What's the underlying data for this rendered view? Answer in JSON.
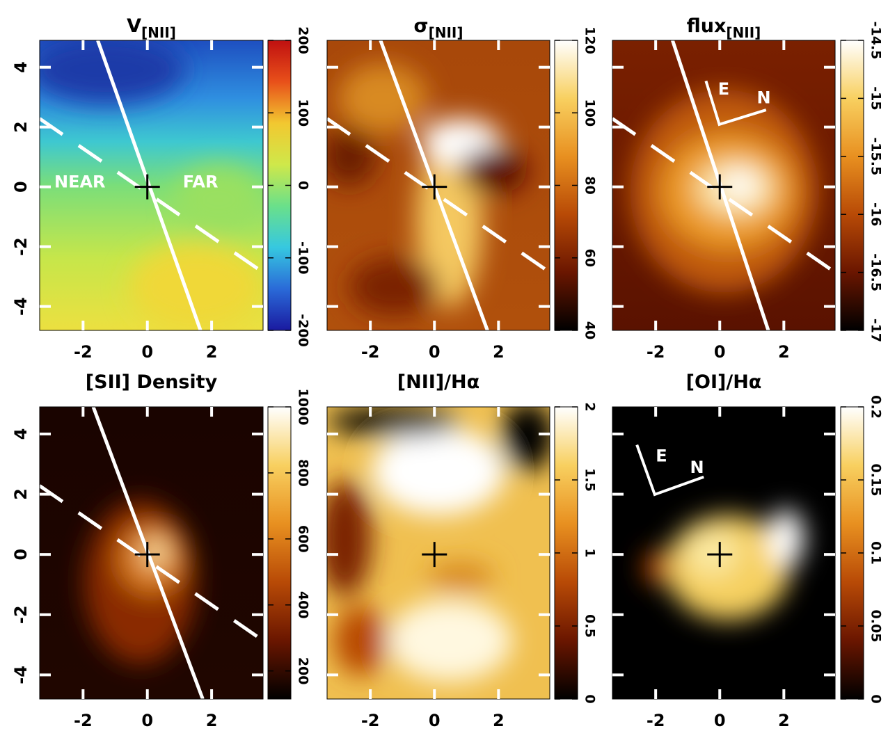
{
  "chart_data": [
    {
      "type": "heatmap",
      "title": "V",
      "title_sub": "[NII]",
      "xlim": [
        -3.35,
        3.6
      ],
      "ylim": [
        -4.8,
        4.9
      ],
      "xticks": [
        -2,
        0,
        2
      ],
      "yticks": [
        -4,
        -2,
        0,
        2,
        4
      ],
      "colorbar_lim": [
        -200,
        200
      ],
      "colorbar_ticks": [
        -200,
        -100,
        0,
        100,
        200
      ],
      "colormap": [
        "#1a1aa0",
        "#2a6ad8",
        "#36c8e0",
        "#6ae08a",
        "#cfe84a",
        "#f2c830",
        "#e8501a",
        "#c01010"
      ],
      "annotations": [
        "NEAR",
        "FAR"
      ]
    },
    {
      "type": "heatmap",
      "title": "σ",
      "title_sub": "[NII]",
      "xlim": [
        -3.35,
        3.6
      ],
      "ylim": [
        -4.8,
        4.9
      ],
      "xticks": [
        -2,
        0,
        2
      ],
      "yticks": [
        -4,
        -2,
        0,
        2,
        4
      ],
      "colorbar_lim": [
        40,
        120
      ],
      "colorbar_ticks": [
        40,
        60,
        80,
        100,
        120
      ],
      "colormap": [
        "#000000",
        "#6a1600",
        "#b84a06",
        "#e89020",
        "#f8d060",
        "#ffffff"
      ]
    },
    {
      "type": "heatmap",
      "title": "flux",
      "title_sub": "[NII]",
      "xlim": [
        -3.35,
        3.6
      ],
      "ylim": [
        -4.8,
        4.9
      ],
      "xticks": [
        -2,
        0,
        2
      ],
      "yticks": [
        -4,
        -2,
        0,
        2,
        4
      ],
      "colorbar_lim": [
        -17,
        -14.5
      ],
      "colorbar_ticks": [
        -17,
        -16.5,
        -16,
        -15.5,
        -15,
        -14.5
      ],
      "colormap": [
        "#000000",
        "#6a1600",
        "#b84a06",
        "#e89020",
        "#f8d060",
        "#ffffff"
      ],
      "annotations": [
        "E",
        "N"
      ]
    },
    {
      "type": "heatmap",
      "title": "[SII]  Density",
      "xlim": [
        -3.35,
        3.6
      ],
      "ylim": [
        -4.8,
        4.9
      ],
      "xticks": [
        -2,
        0,
        2
      ],
      "yticks": [
        -4,
        -2,
        0,
        2,
        4
      ],
      "colorbar_lim": [
        115,
        1000
      ],
      "colorbar_ticks": [
        200,
        400,
        600,
        800,
        1000
      ],
      "colormap": [
        "#000000",
        "#6a1600",
        "#b84a06",
        "#e89020",
        "#f8d060",
        "#ffffff"
      ]
    },
    {
      "type": "heatmap",
      "title": "[NII]/Hα",
      "xlim": [
        -3.35,
        3.6
      ],
      "ylim": [
        -4.8,
        4.9
      ],
      "xticks": [
        -2,
        0,
        2
      ],
      "yticks": [
        -4,
        -2,
        0,
        2,
        4
      ],
      "colorbar_lim": [
        0,
        2
      ],
      "colorbar_ticks": [
        0,
        0.5,
        1,
        1.5,
        2
      ],
      "colormap": [
        "#000000",
        "#6a1600",
        "#b84a06",
        "#e89020",
        "#f8d060",
        "#ffffff"
      ]
    },
    {
      "type": "heatmap",
      "title": "[OI]/Hα",
      "xlim": [
        -3.35,
        3.6
      ],
      "ylim": [
        -4.8,
        4.9
      ],
      "xticks": [
        -2,
        0,
        2
      ],
      "yticks": [
        -4,
        -2,
        0,
        2,
        4
      ],
      "colorbar_lim": [
        0,
        0.2
      ],
      "colorbar_ticks": [
        0,
        0.05,
        0.1,
        0.15,
        0.2
      ],
      "colormap": [
        "#000000",
        "#6a1600",
        "#b84a06",
        "#e89020",
        "#f8d060",
        "#ffffff"
      ],
      "annotations": [
        "E",
        "N"
      ]
    }
  ]
}
